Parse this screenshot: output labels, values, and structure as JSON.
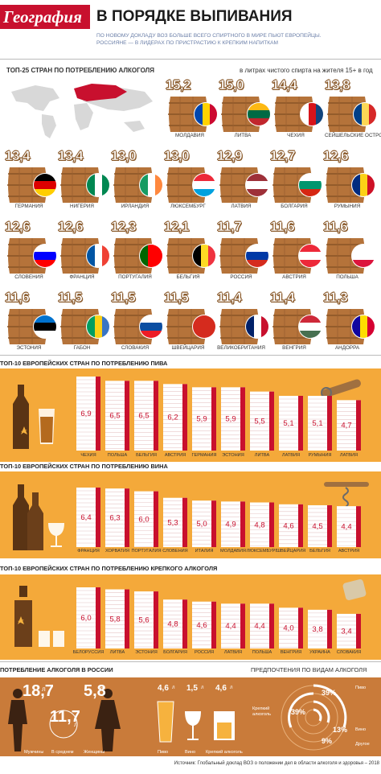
{
  "header": {
    "logo": "География",
    "title": "В ПОРЯДКЕ ВЫПИВАНИЯ",
    "subtitle_line1": "ПО НОВОМУ ДОКЛАДУ ВОЗ БОЛЬШЕ ВСЕГО СПИРТНОГО В МИРЕ ПЬЮТ ЕВРОПЕЙЦЫ.",
    "subtitle_line2": "РОССИЯНЕ — В ЛИДЕРАХ ПО ПРИСТРАСТИЮ К КРЕПКИМ НАПИТКАМ"
  },
  "colors": {
    "accent_red": "#c8102e",
    "orange": "#f4a93a",
    "barrel": "#b5733a",
    "brown_band": "#c97b3a"
  },
  "chart_data": [
    {
      "type": "bar",
      "title": "ТОП-25 СТРАН ПО ПОТРЕБЛЕНИЮ АЛКОГОЛЯ",
      "unit": "в литрах чистого спирта на жителя 15+ в год",
      "categories": [
        "МОЛДАВИЯ",
        "ЛИТВА",
        "ЧЕХИЯ",
        "СЕЙШЕЛЬСКИЕ ОСТРОВА",
        "ГЕРМАНИЯ",
        "НИГЕРИЯ",
        "ИРЛАНДИЯ",
        "ЛЮКСЕМБУРГ",
        "ЛАТВИЯ",
        "БОЛГАРИЯ",
        "РУМЫНИЯ",
        "СЛОВЕНИЯ",
        "ФРАНЦИЯ",
        "ПОРТУГАЛИЯ",
        "БЕЛЬГИЯ",
        "РОССИЯ",
        "АВСТРИЯ",
        "ПОЛЬША",
        "ЭСТОНИЯ",
        "ГАБОН",
        "СЛОВАКИЯ",
        "ШВЕЙЦАРИЯ",
        "ВЕЛИКОБРИТАНИЯ",
        "ВЕНГРИЯ",
        "АНДОРРА"
      ],
      "value_labels": [
        "15,2",
        "15,0",
        "14,4",
        "13,8",
        "13,4",
        "13,4",
        "13,0",
        "13,0",
        "12,9",
        "12,7",
        "12,6",
        "12,6",
        "12,6",
        "12,3",
        "12,1",
        "11,7",
        "11,6",
        "11,6",
        "11,6",
        "11,5",
        "11,5",
        "11,5",
        "11,4",
        "11,4",
        "11,3"
      ],
      "values": [
        15.2,
        15.0,
        14.4,
        13.8,
        13.4,
        13.4,
        13.0,
        13.0,
        12.9,
        12.7,
        12.6,
        12.6,
        12.6,
        12.3,
        12.1,
        11.7,
        11.6,
        11.6,
        11.6,
        11.5,
        11.5,
        11.5,
        11.4,
        11.4,
        11.3
      ]
    },
    {
      "type": "bar",
      "title": "ТОП-10 ЕВРОПЕЙСКИХ СТРАН ПО ПОТРЕБЛЕНИЮ ПИВА",
      "categories": [
        "ЧЕХИЯ",
        "ПОЛЬША",
        "БЕЛЬГИЯ",
        "АВСТРИЯ",
        "ГЕРМАНИЯ",
        "ЭСТОНИЯ",
        "ЛИТВА",
        "ЛАТВИЯ",
        "РУМЫНИЯ",
        "ЛАТВИЯ"
      ],
      "value_labels": [
        "6,9",
        "6,5",
        "6,5",
        "6,2",
        "5,9",
        "5,9",
        "5,5",
        "5,1",
        "5,1",
        "4,7"
      ],
      "values": [
        6.9,
        6.5,
        6.5,
        6.2,
        5.9,
        5.9,
        5.5,
        5.1,
        5.1,
        4.7
      ]
    },
    {
      "type": "bar",
      "title": "ТОП-10 ЕВРОПЕЙСКИХ СТРАН ПО ПОТРЕБЛЕНИЮ ВИНА",
      "categories": [
        "ФРАНЦИЯ",
        "ХОРВАТИЯ",
        "ПОРТУГАЛИЯ",
        "СЛОВЕНИЯ",
        "ИТАЛИЯ",
        "МОЛДАВИЯ",
        "ЛЮКСЕМБУРГ",
        "ШВЕЙЦАРИЯ",
        "БЕЛЬГИЯ",
        "АВСТРИЯ"
      ],
      "value_labels": [
        "6,4",
        "6,3",
        "6,0",
        "5,3",
        "5,0",
        "4,9",
        "4,8",
        "4,6",
        "4,5",
        "4,4"
      ],
      "values": [
        6.4,
        6.3,
        6.0,
        5.3,
        5.0,
        4.9,
        4.8,
        4.6,
        4.5,
        4.4
      ]
    },
    {
      "type": "bar",
      "title": "ТОП-10 ЕВРОПЕЙСКИХ СТРАН ПО ПОТРЕБЛЕНИЮ КРЕПКОГО АЛКОГОЛЯ",
      "categories": [
        "БЕЛОРУССИЯ",
        "ЛИТВА",
        "ЭСТОНИЯ",
        "БОЛГАРИЯ",
        "РОССИЯ",
        "ЛАТВИЯ",
        "ПОЛЬША",
        "ВЕНГРИЯ",
        "УКРАИНА",
        "СЛОВАКИЯ"
      ],
      "value_labels": [
        "6,0",
        "5,8",
        "5,6",
        "4,8",
        "4,6",
        "4,4",
        "4,4",
        "4,0",
        "3,8",
        "3,4"
      ],
      "values": [
        6.0,
        5.8,
        5.6,
        4.8,
        4.6,
        4.4,
        4.4,
        4.0,
        3.8,
        3.4
      ]
    },
    {
      "type": "bar",
      "title": "ПОТРЕБЛЕНИЕ АЛКОГОЛЯ В РОССИИ",
      "unit": "л",
      "categories": [
        "Мужчины",
        "В среднем",
        "Женщины"
      ],
      "value_labels": [
        "18,7",
        "11,7",
        "5,8"
      ],
      "values": [
        18.7,
        11.7,
        5.8
      ]
    },
    {
      "type": "bar",
      "categories": [
        "Пиво",
        "Вино",
        "Крепкий алкоголь"
      ],
      "value_labels": [
        "4,6",
        "1,5",
        "4,6"
      ],
      "values": [
        4.6,
        1.5,
        4.6
      ]
    },
    {
      "type": "pie",
      "title": "ПРЕДПОЧТЕНИЯ ПО ВИДАМ АЛКОГОЛЯ",
      "categories": [
        "Крепкий алкоголь",
        "Пиво",
        "Вино",
        "Другое"
      ],
      "value_labels": [
        "39%",
        "39%",
        "13%",
        "9%"
      ],
      "values": [
        39,
        39,
        13,
        9
      ]
    }
  ],
  "russia": {
    "unit": "л"
  },
  "source": "Источник: Глобальный доклад ВОЗ о положении дел в области алкоголя и здоровья – 2018"
}
